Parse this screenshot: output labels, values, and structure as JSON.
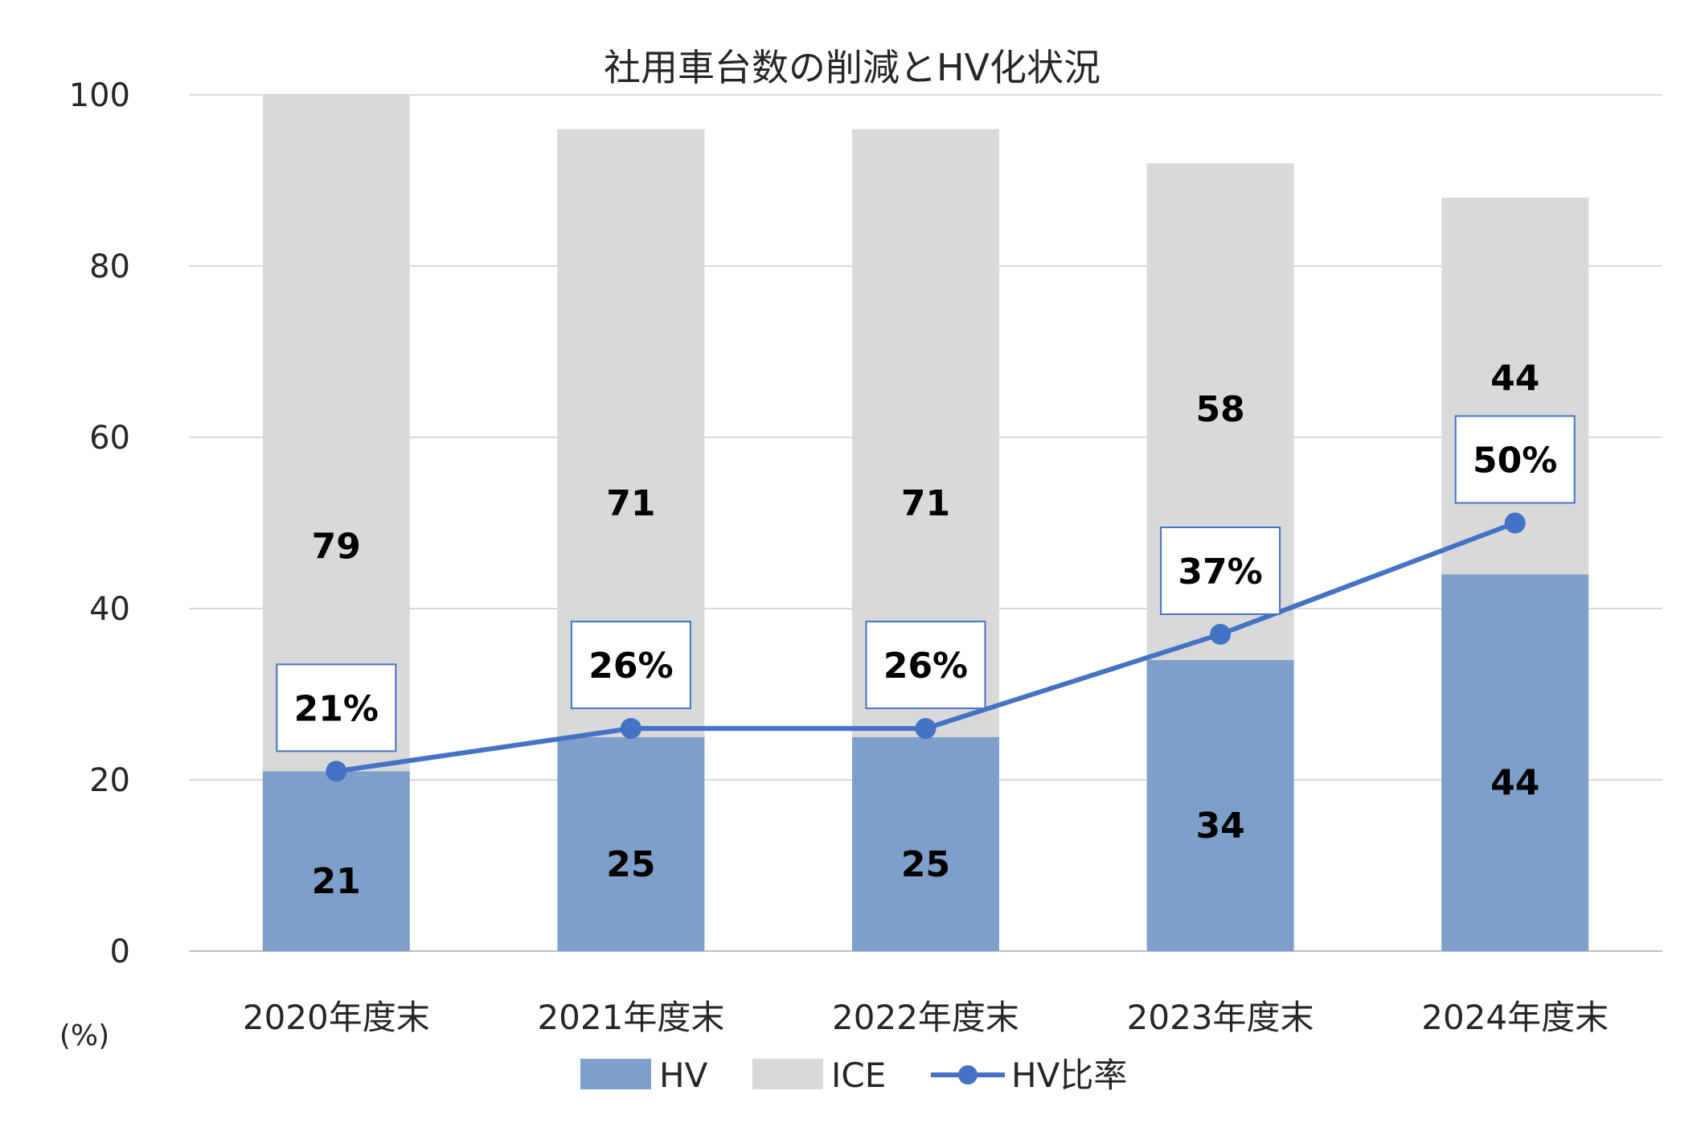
{
  "chart_data": {
    "type": "bar",
    "stacked": true,
    "title": "社用車台数の削減とHV化状況",
    "ylabel": "(%)",
    "ylim": [
      0,
      100
    ],
    "yticks": [
      0,
      20,
      40,
      60,
      80,
      100
    ],
    "grid": true,
    "legend_position": "bottom",
    "categories": [
      "2020年度末",
      "2021年度末",
      "2022年度末",
      "2023年度末",
      "2024年度末"
    ],
    "series": [
      {
        "name": "HV",
        "kind": "bar",
        "color": "#7F9FCB",
        "values": [
          21,
          25,
          25,
          34,
          44
        ],
        "labels": [
          "21",
          "25",
          "25",
          "34",
          "44"
        ]
      },
      {
        "name": "ICE",
        "kind": "bar",
        "color": "#D9D9D9",
        "values": [
          79,
          71,
          71,
          58,
          44
        ],
        "labels": [
          "79",
          "71",
          "71",
          "58",
          "44"
        ]
      },
      {
        "name": "HV比率",
        "kind": "line",
        "color": "#4472C4",
        "values": [
          21,
          26,
          26,
          37,
          50
        ],
        "labels": [
          "21%",
          "26%",
          "26%",
          "37%",
          "50%"
        ]
      }
    ]
  }
}
